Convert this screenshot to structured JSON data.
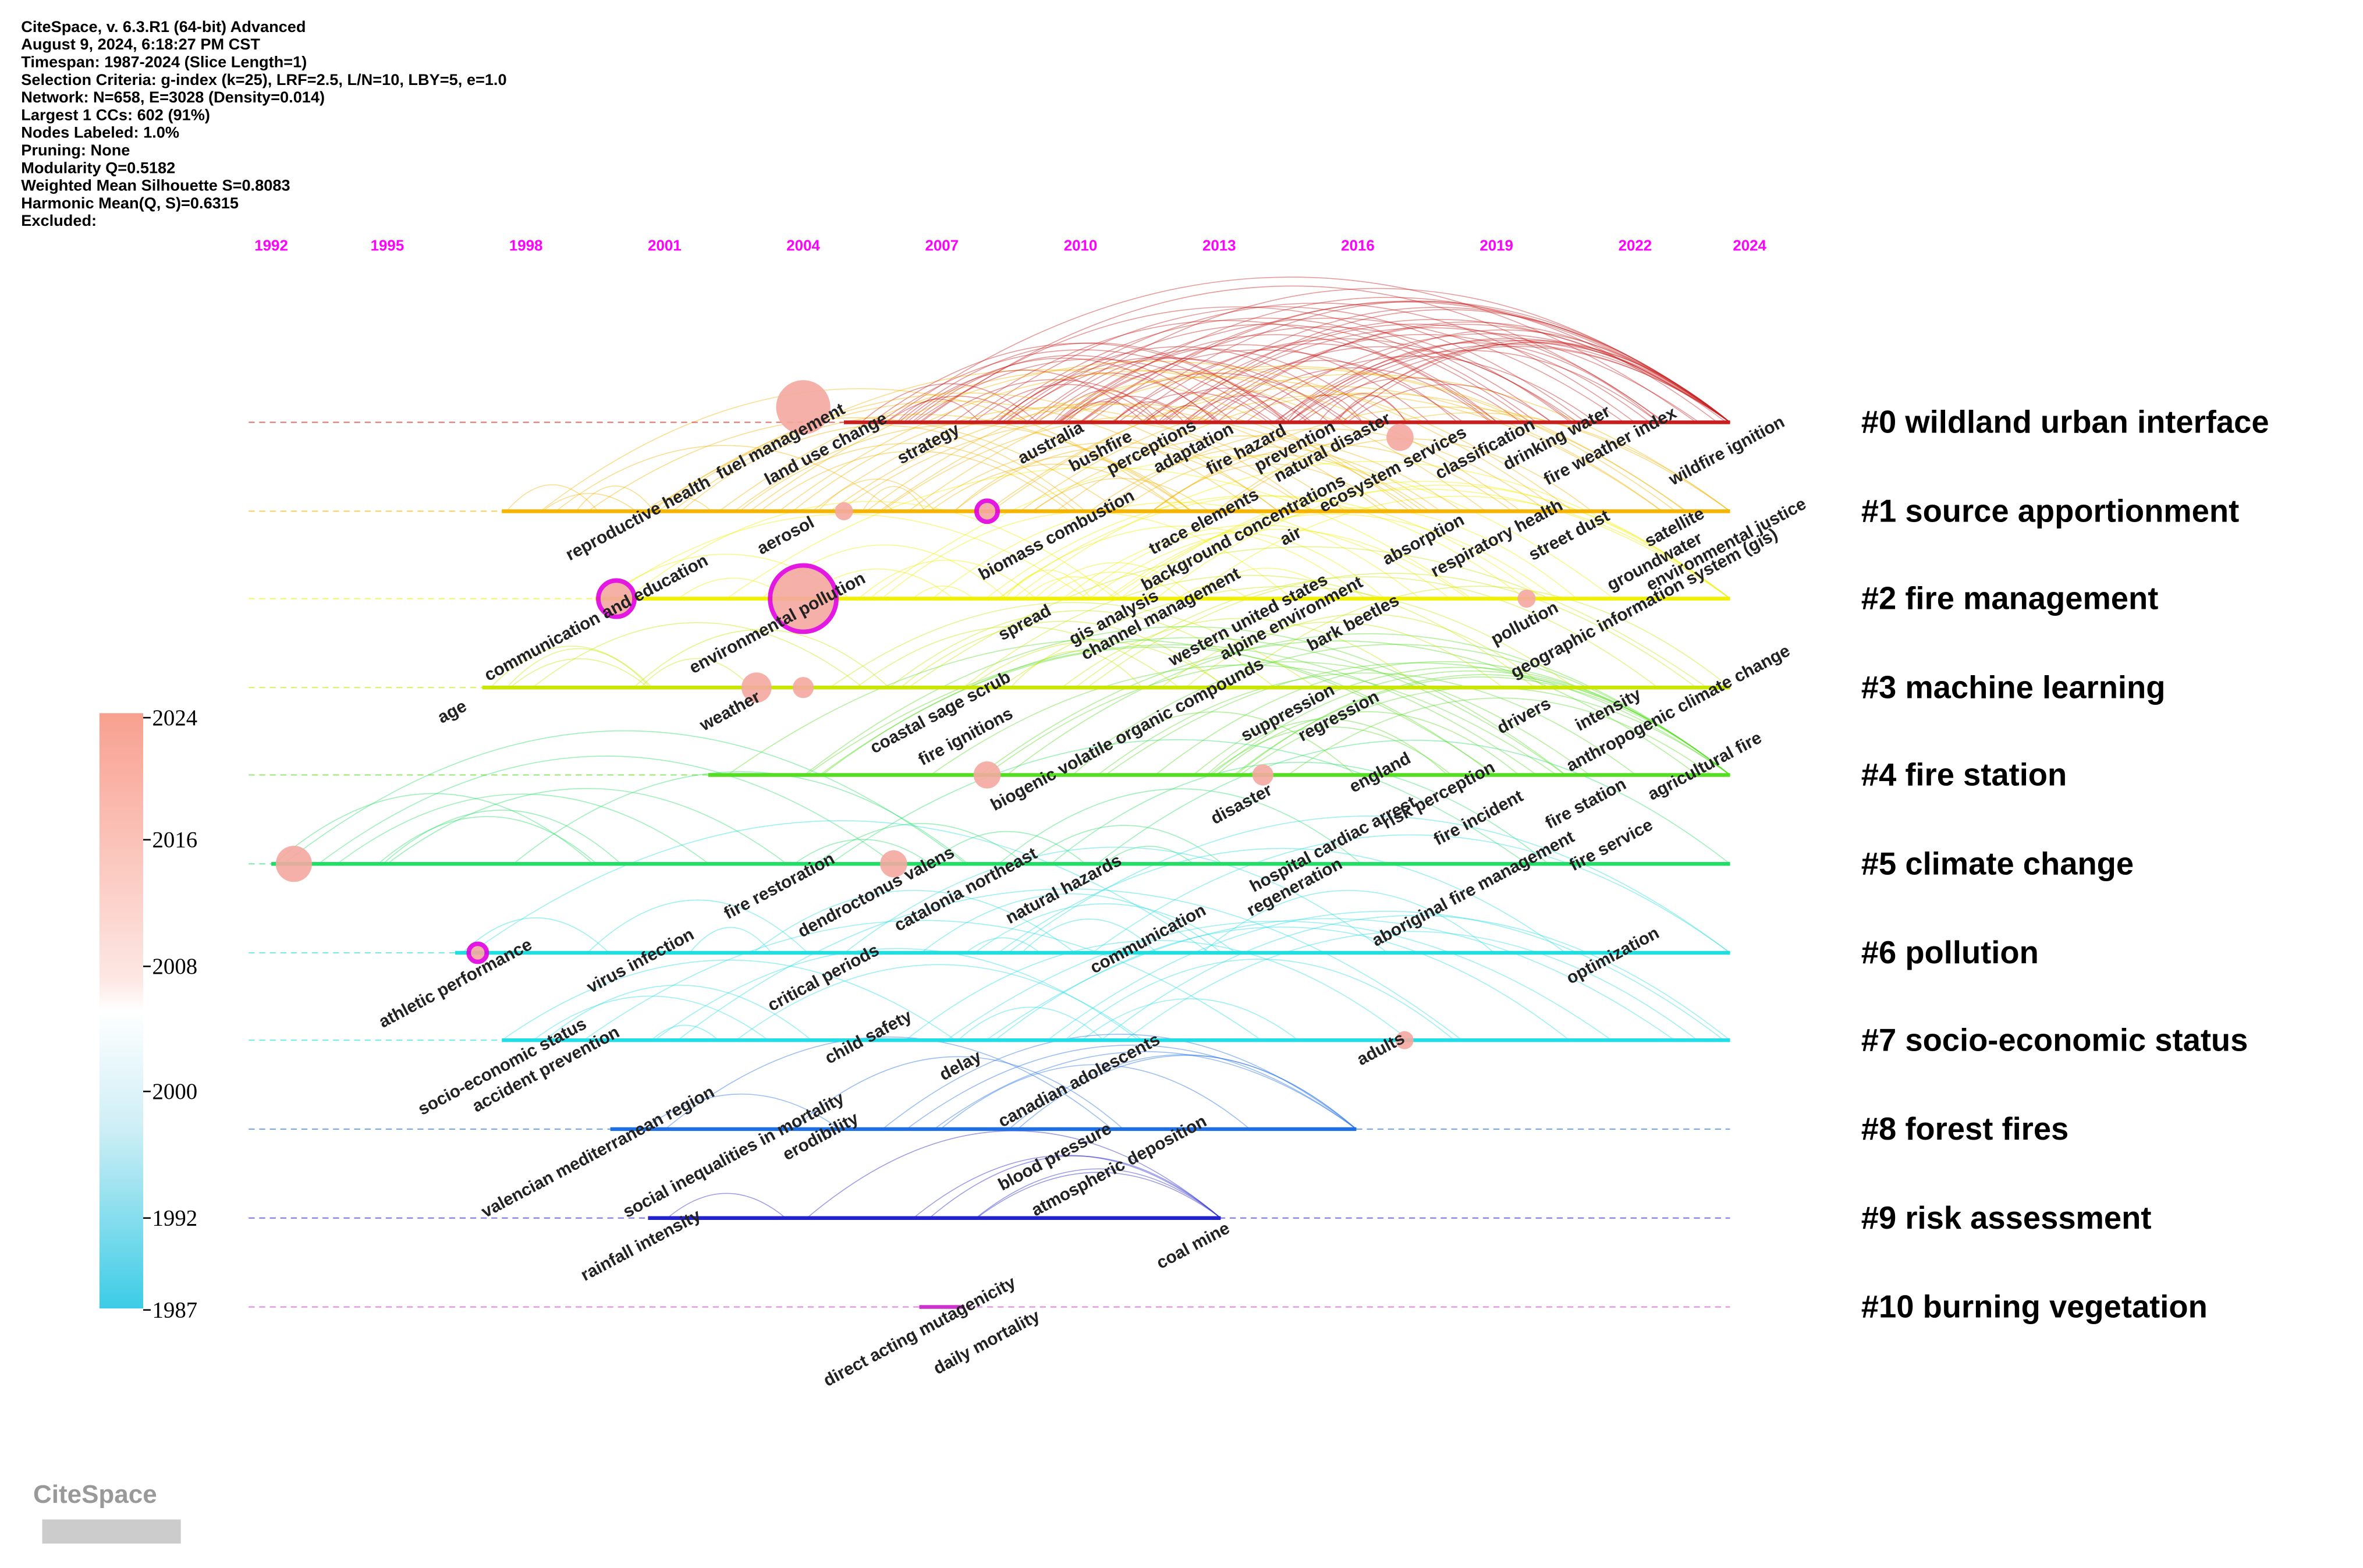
{
  "header": {
    "lines": [
      "CiteSpace, v. 6.3.R1 (64-bit) Advanced",
      "August 9, 2024, 6:18:27 PM CST",
      "Timespan: 1987-2024 (Slice Length=1)",
      "Selection Criteria: g-index (k=25), LRF=2.5, L/N=10, LBY=5, e=1.0",
      "Network: N=658, E=3028 (Density=0.014)",
      "Largest 1 CCs: 602 (91%)",
      "Nodes Labeled: 1.0%",
      "Pruning: None",
      "Modularity Q=0.5182",
      "Weighted Mean Silhouette S=0.8083",
      "Harmonic Mean(Q, S)=0.6315",
      "Excluded:"
    ]
  },
  "years": [
    1992,
    1995,
    1998,
    2001,
    2004,
    2007,
    2010,
    2013,
    2016,
    2019,
    2022,
    2024
  ],
  "clusters": [
    "#0 wildland urban interface",
    "#1 source apportionment",
    "#2 fire management",
    "#3 machine learning",
    "#4 fire station",
    "#5 climate change",
    "#6 pollution",
    "#7 socio-economic status",
    "#8 forest fires",
    "#9 risk assessment",
    "#10 burning vegetation"
  ],
  "keywords": [
    "fuel management",
    "land use change",
    "strategy",
    "australia",
    "bushfire",
    "perceptions",
    "adaptation",
    "fire hazard",
    "prevention",
    "natural disaster",
    "ecosystem services",
    "classification",
    "drinking water",
    "fire weather index",
    "wildfire ignition",
    "reproductive health",
    "aerosol",
    "biomass combustion",
    "trace elements",
    "background concentrations",
    "air",
    "absorption",
    "respiratory health",
    "street dust",
    "satellite",
    "groundwater",
    "environmental justice",
    "communication and education",
    "environmental pollution",
    "spread",
    "gis analysis",
    "channel management",
    "western united states",
    "alpine environment",
    "bark beetles",
    "pollution",
    "geographic information system (gis)",
    "age",
    "weather",
    "coastal sage scrub",
    "fire ignitions",
    "biogenic volatile organic compounds",
    "suppression",
    "regression",
    "drivers",
    "intensity",
    "anthropogenic climate change",
    "disaster",
    "england",
    "hospital cardiac arrest",
    "risk perception",
    "fire incident",
    "fire station",
    "agricultural fire",
    "fire restoration",
    "dendroctonus valens",
    "catalonia northeast",
    "natural hazards",
    "regeneration",
    "aboriginal fire management",
    "fire service",
    "athletic performance",
    "virus infection",
    "critical periods",
    "communication",
    "optimization",
    "socio-economic status",
    "accident prevention",
    "child safety",
    "delay",
    "canadian adolescents",
    "adults",
    "valencian mediterranean region",
    "social inequalities in mortality",
    "erodibility",
    "blood pressure",
    "atmospheric deposition",
    "rainfall intensity",
    "coal mine",
    "direct acting mutagenicity",
    "daily mortality"
  ],
  "legend": {
    "ticks": [
      2024,
      2016,
      2008,
      2000,
      1992,
      1987
    ]
  },
  "logo": "CiteSpace"
}
